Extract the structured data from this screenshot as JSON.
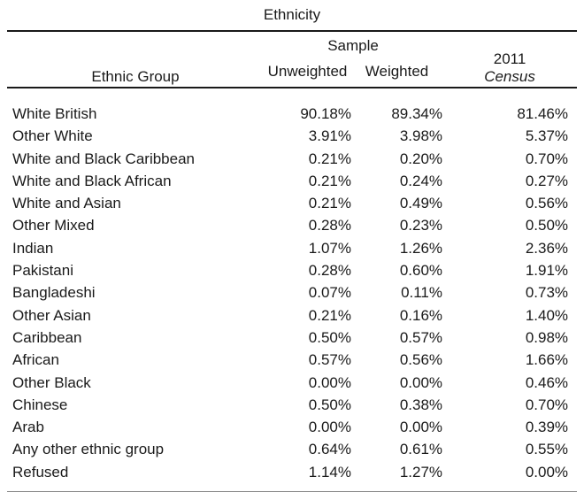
{
  "page": {
    "background": "#ffffff",
    "text_color": "#1a1a1a",
    "rule_color": "#1a1a1a"
  },
  "table": {
    "title": "Ethnicity",
    "header": {
      "group": "Ethnic Group",
      "sample": "Sample",
      "unweighted": "Unweighted",
      "weighted": "Weighted",
      "census_line1": "2011",
      "census_line2": "Census"
    }
  },
  "chart_data": {
    "type": "table",
    "title": "Ethnicity",
    "columns": [
      "Ethnic Group",
      "Sample Unweighted",
      "Sample Weighted",
      "2011 Census"
    ],
    "rows": [
      [
        "White British",
        "90.18%",
        "89.34%",
        "81.46%"
      ],
      [
        "Other White",
        "3.91%",
        "3.98%",
        "5.37%"
      ],
      [
        "White and Black Caribbean",
        "0.21%",
        "0.20%",
        "0.70%"
      ],
      [
        "White and Black African",
        "0.21%",
        "0.24%",
        "0.27%"
      ],
      [
        "White and Asian",
        "0.21%",
        "0.49%",
        "0.56%"
      ],
      [
        "Other Mixed",
        "0.28%",
        "0.23%",
        "0.50%"
      ],
      [
        "Indian",
        "1.07%",
        "1.26%",
        "2.36%"
      ],
      [
        "Pakistani",
        "0.28%",
        "0.60%",
        "1.91%"
      ],
      [
        "Bangladeshi",
        "0.07%",
        "0.11%",
        "0.73%"
      ],
      [
        "Other Asian",
        "0.21%",
        "0.16%",
        "1.40%"
      ],
      [
        "Caribbean",
        "0.50%",
        "0.57%",
        "0.98%"
      ],
      [
        "African",
        "0.57%",
        "0.56%",
        "1.66%"
      ],
      [
        "Other Black",
        "0.00%",
        "0.00%",
        "0.46%"
      ],
      [
        "Chinese",
        "0.50%",
        "0.38%",
        "0.70%"
      ],
      [
        "Arab",
        "0.00%",
        "0.00%",
        "0.39%"
      ],
      [
        "Any other ethnic group",
        "0.64%",
        "0.61%",
        "0.55%"
      ],
      [
        "Refused",
        "1.14%",
        "1.27%",
        "0.00%"
      ]
    ]
  }
}
